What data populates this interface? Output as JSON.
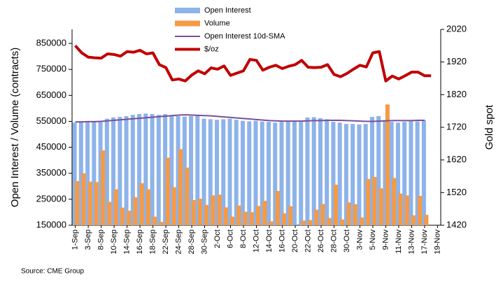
{
  "chart_data": {
    "type": "bar-line",
    "y_label": "Open Interest / Volume (contracts)",
    "y2_label": "Gold spot",
    "source": "Source: CME Group",
    "categories": [
      "1-Sep",
      null,
      "3-Sep",
      null,
      "8-Sep",
      null,
      "10-Sep",
      null,
      "14-Sep",
      null,
      "16-Sep",
      null,
      "18-Sep",
      null,
      "22-Sep",
      null,
      "24-Sep",
      null,
      "28-Sep",
      null,
      "30-Sep",
      null,
      "2-Oct",
      null,
      "6-Oct",
      null,
      "8-Oct",
      null,
      "12-Oct",
      null,
      "14-Oct",
      null,
      "16-Oct",
      null,
      "20-Oct",
      null,
      "22-Oct",
      null,
      "26-Oct",
      null,
      "28-Oct",
      null,
      "30-Oct",
      null,
      "3-Nov",
      null,
      "5-Nov",
      null,
      "9-Nov",
      null,
      "11-Nov",
      null,
      "13-Nov",
      null,
      "17-Nov",
      null,
      "19-Nov"
    ],
    "series": [
      {
        "name": "Open Interest",
        "kind": "bar",
        "color": "#8db3ea",
        "values": [
          545000,
          548000,
          546000,
          548000,
          552000,
          560000,
          565000,
          567000,
          570000,
          575000,
          578000,
          580000,
          578000,
          575000,
          578000,
          572000,
          570000,
          568000,
          570000,
          572000,
          560000,
          558000,
          556000,
          558000,
          560000,
          556000,
          552000,
          550000,
          552000,
          549000,
          548000,
          545000,
          548000,
          550000,
          550000,
          548000,
          565000,
          566000,
          562000,
          558000,
          548000,
          545000,
          540000,
          540000,
          538000,
          540000,
          567000,
          570000,
          555000,
          548000,
          545000,
          548000,
          552000,
          550000,
          555000,
          null,
          null
        ]
      },
      {
        "name": "Volume",
        "kind": "bar",
        "color": "#f59a45",
        "values": [
          320000,
          350000,
          318000,
          316000,
          438000,
          240000,
          288000,
          218000,
          206000,
          258000,
          312000,
          288000,
          183000,
          163000,
          410000,
          296000,
          443000,
          372000,
          247000,
          252000,
          228000,
          265000,
          268000,
          219000,
          183000,
          226000,
          202000,
          200000,
          224000,
          244000,
          165000,
          282000,
          196000,
          223000,
          140000,
          168000,
          170000,
          210000,
          232000,
          178000,
          306000,
          172000,
          238000,
          231000,
          180000,
          328000,
          336000,
          292000,
          615000,
          332000,
          272000,
          265000,
          188000,
          263000,
          190000,
          null,
          null
        ]
      },
      {
        "name": "Open Interest 10d-SMA",
        "kind": "line",
        "color": "#7a4f9e",
        "values": [
          548000,
          548000,
          549000,
          549000,
          550000,
          552000,
          554000,
          556000,
          558000,
          560000,
          562000,
          564000,
          566000,
          568000,
          570000,
          572000,
          574000,
          575000,
          574000,
          573000,
          572000,
          571000,
          569000,
          567000,
          565000,
          563000,
          561000,
          559000,
          557000,
          555000,
          553000,
          552000,
          551000,
          551000,
          551000,
          551000,
          552000,
          553000,
          553000,
          554000,
          554000,
          554000,
          553000,
          552000,
          551000,
          550000,
          550000,
          551000,
          552000,
          553000,
          553000,
          553000,
          553000,
          554000,
          554000,
          null,
          null
        ]
      },
      {
        "name": "$/oz",
        "kind": "line",
        "axis": "y2",
        "color": "#c00000",
        "values": [
          1970,
          1948,
          1935,
          1933,
          1932,
          1945,
          1943,
          1938,
          1952,
          1950,
          1956,
          1945,
          1948,
          1912,
          1903,
          1865,
          1868,
          1862,
          1880,
          1893,
          1884,
          1902,
          1898,
          1908,
          1879,
          1886,
          1893,
          1928,
          1925,
          1895,
          1904,
          1910,
          1900,
          1907,
          1912,
          1925,
          1904,
          1903,
          1904,
          1912,
          1882,
          1875,
          1885,
          1898,
          1910,
          1905,
          1948,
          1952,
          1862,
          1877,
          1868,
          1878,
          1889,
          1889,
          1878,
          1878,
          null
        ]
      }
    ],
    "ylim": [
      150000,
      904000
    ],
    "yticks": [
      150000,
      250000,
      350000,
      450000,
      550000,
      650000,
      750000,
      850000
    ],
    "y2lim": [
      1420,
      2020
    ],
    "y2ticks": [
      1420,
      1520,
      1620,
      1720,
      1820,
      1920,
      2020
    ]
  }
}
